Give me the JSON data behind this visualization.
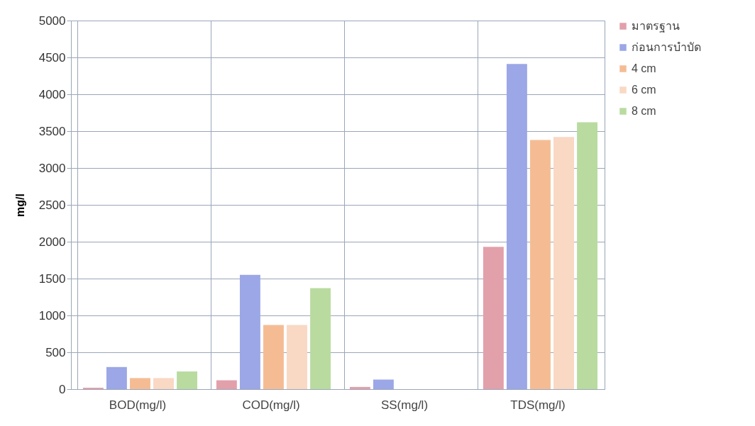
{
  "chart_data": {
    "type": "bar",
    "ylabel": "mg/l",
    "categories": [
      "BOD(mg/l)",
      "COD(mg/l)",
      "SS(mg/l)",
      "TDS(mg/l)"
    ],
    "series": [
      {
        "name": "มาตรฐาน",
        "color": "#e2a0ab",
        "values": [
          20,
          120,
          30,
          1930
        ]
      },
      {
        "name": "ก่อนการบำบัด",
        "color": "#9ba7e6",
        "values": [
          300,
          1550,
          130,
          4410
        ]
      },
      {
        "name": "4 cm",
        "color": "#f5bc94",
        "values": [
          150,
          870,
          0,
          3380
        ]
      },
      {
        "name": "6 cm",
        "color": "#f9d8c4",
        "values": [
          150,
          870,
          0,
          3420
        ]
      },
      {
        "name": "8 cm",
        "color": "#b9dba0",
        "values": [
          240,
          1370,
          0,
          3620
        ]
      }
    ],
    "ylim": [
      0,
      5000
    ],
    "yticks": [
      0,
      500,
      1000,
      1500,
      2000,
      2500,
      3000,
      3500,
      4000,
      4500,
      5000
    ],
    "grid": true,
    "legend": "right"
  }
}
